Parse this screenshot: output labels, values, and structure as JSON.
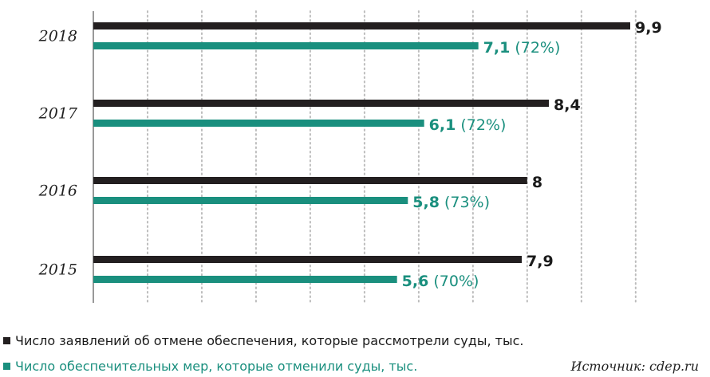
{
  "chart_data": {
    "type": "bar",
    "orientation": "horizontal",
    "categories": [
      "2018",
      "2017",
      "2016",
      "2015"
    ],
    "series": [
      {
        "name": "Число заявлений об отмене обеспечения, которые рассмотрели суды, тыс.",
        "color": "#231f20",
        "values": [
          9.9,
          8.4,
          8,
          7.9
        ],
        "labels": [
          "9,9",
          "8,4",
          "8",
          "7,9"
        ]
      },
      {
        "name": "Число обеспечительных мер, которые отменили суды, тыс.",
        "color": "#1a8f7e",
        "values": [
          7.1,
          6.1,
          5.8,
          5.6
        ],
        "labels": [
          "7,1",
          "6,1",
          "5,8",
          "5,6"
        ],
        "percent_labels": [
          "(72%)",
          "(72%)",
          "(73%)",
          "(70%)"
        ]
      }
    ],
    "xlim": [
      0,
      10
    ],
    "grid": true,
    "legend_position": "bottom-left"
  },
  "source": "Источник: cdep.ru"
}
